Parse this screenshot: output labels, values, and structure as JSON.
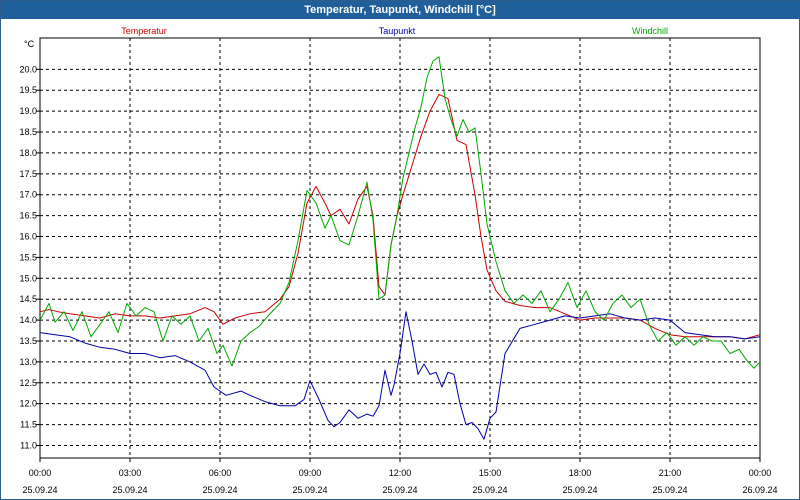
{
  "window": {
    "title": "Temperatur, Taupunkt, Windchill [°C]"
  },
  "chart_data": {
    "type": "line",
    "title": "Temperatur, Taupunkt, Windchill [°C]",
    "ylabel": "°C",
    "ylim": [
      10.7,
      20.75
    ],
    "xlim": [
      0,
      24
    ],
    "y_ticks": [
      "11.0",
      "11.5",
      "12.0",
      "12.5",
      "13.0",
      "13.5",
      "14.0",
      "14.5",
      "15.0",
      "15.5",
      "16.0",
      "16.5",
      "17.0",
      "17.5",
      "18.0",
      "18.5",
      "19.0",
      "19.5",
      "20.0"
    ],
    "x_ticks": [
      {
        "time": "00:00",
        "date": "25.09.24"
      },
      {
        "time": "03:00",
        "date": "25.09.24"
      },
      {
        "time": "06:00",
        "date": "25.09.24"
      },
      {
        "time": "09:00",
        "date": "25.09.24"
      },
      {
        "time": "12:00",
        "date": "25.09.24"
      },
      {
        "time": "15:00",
        "date": "25.09.24"
      },
      {
        "time": "18:00",
        "date": "25.09.24"
      },
      {
        "time": "21:00",
        "date": "25.09.24"
      },
      {
        "time": "00:00",
        "date": "26.09.24"
      }
    ],
    "grid": true,
    "legend_position": "top",
    "series": [
      {
        "name": "Temperatur",
        "color": "#cc0000",
        "x": [
          0,
          0.3,
          0.6,
          1,
          1.5,
          2,
          2.5,
          3,
          3.5,
          4,
          4.5,
          5,
          5.5,
          5.8,
          6.1,
          6.5,
          7,
          7.5,
          8,
          8.3,
          8.6,
          8.9,
          9.2,
          9.5,
          9.7,
          10,
          10.3,
          10.6,
          10.9,
          11.1,
          11.3,
          11.5,
          11.7,
          11.9,
          12.1,
          12.4,
          12.7,
          13,
          13.3,
          13.6,
          13.9,
          14.2,
          14.5,
          14.7,
          14.9,
          15.2,
          15.5,
          16,
          16.5,
          17,
          17.5,
          18,
          18.5,
          19,
          19.5,
          20,
          20.5,
          21,
          21.5,
          22,
          22.5,
          23,
          23.5,
          24
        ],
        "values": [
          14.2,
          14.25,
          14.2,
          14.15,
          14.1,
          14.05,
          14.15,
          14.1,
          14.1,
          14.05,
          14.1,
          14.15,
          14.3,
          14.2,
          13.9,
          14.05,
          14.15,
          14.2,
          14.5,
          14.8,
          15.6,
          16.8,
          17.2,
          16.8,
          16.5,
          16.65,
          16.3,
          16.9,
          17.2,
          16.5,
          14.8,
          14.6,
          15.8,
          16.5,
          17.0,
          17.7,
          18.4,
          19.0,
          19.4,
          19.3,
          18.3,
          18.2,
          17.0,
          16.0,
          15.2,
          14.7,
          14.45,
          14.35,
          14.3,
          14.3,
          14.15,
          14.0,
          14.05,
          14.05,
          14.05,
          14.0,
          13.8,
          13.65,
          13.6,
          13.6,
          13.6,
          13.6,
          13.55,
          13.65
        ]
      },
      {
        "name": "Taupunkt",
        "color": "#0000aa",
        "x": [
          0,
          0.5,
          1,
          1.5,
          2,
          2.5,
          3,
          3.5,
          4,
          4.5,
          5,
          5.5,
          5.8,
          6.2,
          6.7,
          7,
          7.5,
          8,
          8.5,
          8.8,
          9,
          9.3,
          9.6,
          9.8,
          10,
          10.3,
          10.6,
          10.9,
          11.1,
          11.3,
          11.5,
          11.7,
          11.8,
          12,
          12.2,
          12.4,
          12.6,
          12.8,
          13,
          13.2,
          13.4,
          13.6,
          13.8,
          14,
          14.2,
          14.4,
          14.6,
          14.8,
          15,
          15.2,
          15.5,
          16,
          16.5,
          17,
          17.5,
          18,
          18.5,
          19,
          19.5,
          20,
          20.5,
          21,
          21.5,
          22,
          22.5,
          23,
          23.5,
          24
        ],
        "values": [
          13.7,
          13.65,
          13.6,
          13.45,
          13.35,
          13.3,
          13.2,
          13.2,
          13.1,
          13.15,
          13.0,
          12.8,
          12.4,
          12.2,
          12.3,
          12.2,
          12.05,
          11.95,
          11.95,
          12.1,
          12.55,
          12.1,
          11.6,
          11.45,
          11.55,
          11.85,
          11.65,
          11.75,
          11.7,
          11.95,
          12.8,
          12.2,
          12.45,
          13.2,
          14.2,
          13.5,
          12.7,
          12.95,
          12.7,
          12.75,
          12.4,
          12.75,
          12.7,
          12.0,
          11.5,
          11.55,
          11.4,
          11.15,
          11.65,
          11.8,
          13.2,
          13.8,
          13.9,
          14.0,
          14.1,
          14.05,
          14.1,
          14.15,
          14.05,
          14.0,
          14.05,
          14.0,
          13.7,
          13.65,
          13.6,
          13.6,
          13.55,
          13.6
        ]
      },
      {
        "name": "Windchill",
        "color": "#00aa00",
        "x": [
          0,
          0.3,
          0.5,
          0.8,
          1.1,
          1.4,
          1.7,
          2,
          2.3,
          2.6,
          2.9,
          3.2,
          3.5,
          3.8,
          4.1,
          4.4,
          4.7,
          5,
          5.3,
          5.6,
          5.9,
          6.1,
          6.4,
          6.7,
          7,
          7.3,
          7.6,
          8,
          8.3,
          8.6,
          8.9,
          9.2,
          9.5,
          9.7,
          10,
          10.3,
          10.6,
          10.9,
          11.1,
          11.3,
          11.5,
          11.7,
          11.9,
          12.1,
          12.3,
          12.5,
          12.7,
          12.9,
          13.1,
          13.3,
          13.5,
          13.7,
          13.9,
          14.1,
          14.3,
          14.5,
          14.7,
          14.9,
          15.2,
          15.5,
          15.8,
          16.1,
          16.4,
          16.7,
          17,
          17.3,
          17.6,
          17.9,
          18.2,
          18.5,
          18.8,
          19.1,
          19.4,
          19.7,
          20,
          20.3,
          20.6,
          20.9,
          21.2,
          21.5,
          21.8,
          22.1,
          22.4,
          22.7,
          23,
          23.3,
          23.6,
          23.8,
          24
        ],
        "values": [
          14.0,
          14.4,
          13.95,
          14.2,
          13.75,
          14.2,
          13.6,
          13.9,
          14.2,
          13.7,
          14.4,
          14.1,
          14.3,
          14.2,
          13.5,
          14.1,
          13.9,
          14.1,
          13.5,
          13.8,
          13.2,
          13.4,
          12.9,
          13.5,
          13.7,
          13.85,
          14.1,
          14.4,
          14.9,
          15.9,
          17.1,
          16.8,
          16.2,
          16.5,
          15.9,
          15.8,
          16.5,
          17.3,
          16.4,
          14.5,
          14.6,
          15.8,
          16.5,
          17.4,
          18.0,
          18.6,
          19.1,
          19.8,
          20.2,
          20.3,
          19.3,
          18.8,
          18.4,
          18.8,
          18.5,
          18.6,
          17.5,
          16.3,
          15.4,
          14.7,
          14.4,
          14.6,
          14.4,
          14.7,
          14.2,
          14.5,
          14.9,
          14.3,
          14.7,
          14.2,
          14.0,
          14.4,
          14.6,
          14.3,
          14.5,
          13.9,
          13.5,
          13.7,
          13.4,
          13.6,
          13.4,
          13.6,
          13.5,
          13.5,
          13.2,
          13.3,
          13.0,
          12.85,
          13.0
        ]
      }
    ]
  }
}
